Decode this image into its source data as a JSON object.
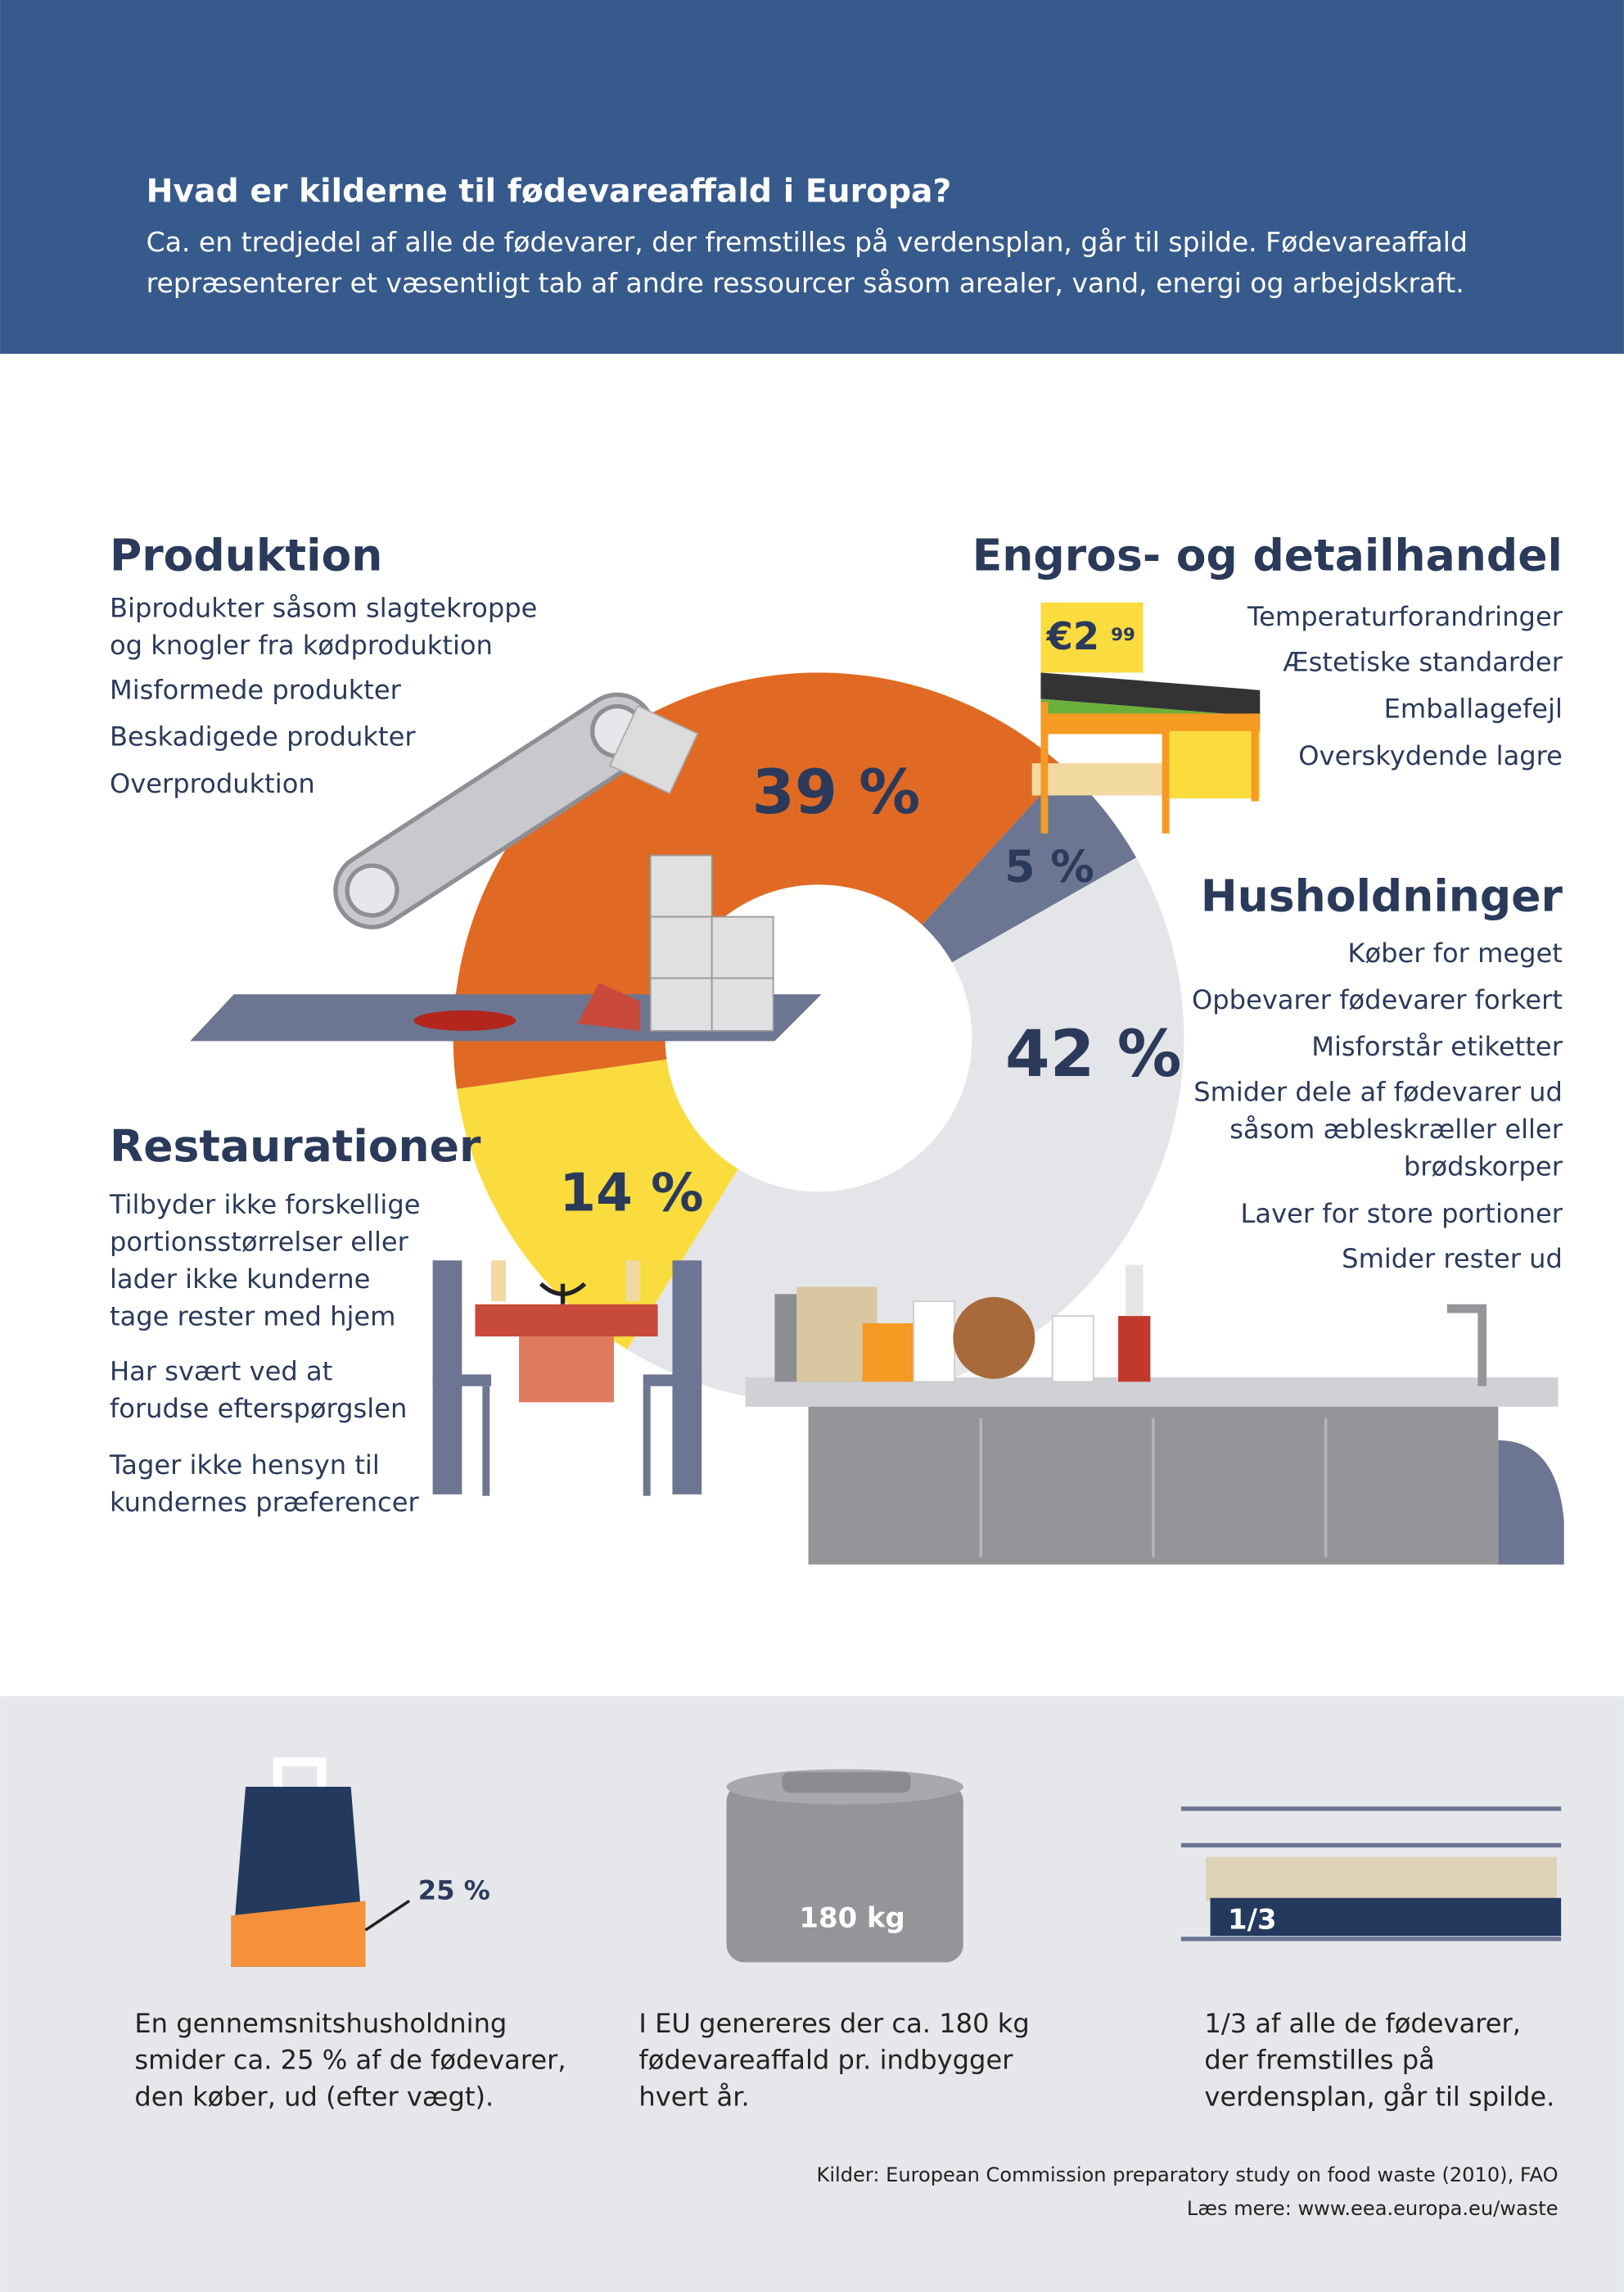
{
  "header": {
    "title": "Hvad er kilderne til fødevareaffald i Europa?",
    "subtitle": [
      "Ca. en tredjedel af alle de fødevarer, der fremstilles på verdensplan, går til spilde. Fødevareaffald",
      "repræsenterer et væsentligt tab af andre ressourcer såsom arealer, vand, energi og arbejdskraft."
    ]
  },
  "chart_data": {
    "type": "donut",
    "categories": [
      "Produktion",
      "Engros- og detailhandel",
      "Husholdninger",
      "Restaurationer"
    ],
    "values": [
      39,
      5,
      42,
      14
    ],
    "value_labels": [
      "39 %",
      "5 %",
      "42 %",
      "14 %"
    ],
    "colors": [
      "#e06a24",
      "#6c7591",
      "#e4e5e9",
      "#fbdc3e"
    ]
  },
  "sections": [
    {
      "title": "Produktion",
      "items": [
        [
          "Biprodukter såsom slagtekroppe",
          "og knogler fra kødproduktion"
        ],
        [
          "Misformede produkter"
        ],
        [
          "Beskadigede produkter"
        ],
        [
          "Overproduktion"
        ]
      ]
    },
    {
      "title": "Engros- og detailhandel",
      "items": [
        [
          "Temperaturforandringer"
        ],
        [
          "Æstetiske standarder"
        ],
        [
          "Emballagefejl"
        ],
        [
          "Overskydende lagre"
        ]
      ]
    },
    {
      "title": "Husholdninger",
      "items": [
        [
          "Køber for meget"
        ],
        [
          "Opbevarer fødevarer forkert"
        ],
        [
          "Misforstår etiketter"
        ],
        [
          "Smider dele af fødevarer ud",
          "såsom æbleskræller eller",
          "brødskorper"
        ],
        [
          "Laver for store portioner"
        ],
        [
          "Smider rester ud"
        ]
      ]
    },
    {
      "title": "Restaurationer",
      "items": [
        [
          "Tilbyder ikke forskellige",
          "portionsstørrelser eller",
          "lader ikke kunderne",
          "tage rester med hjem"
        ],
        [
          "Har svært ved at",
          "forudse efterspørgslen"
        ],
        [
          "Tager ikke hensyn til",
          "kundernes præferencer"
        ]
      ]
    }
  ],
  "price_tag": {
    "main": "€2",
    "cents": "99"
  },
  "stats": [
    {
      "label": "25 %",
      "text": [
        "En gennemsnitshusholdning",
        "smider ca. 25 % af de fødevarer,",
        "den køber, ud (efter vægt)."
      ]
    },
    {
      "label": "180 kg",
      "text": [
        "I EU genereres der ca. 180 kg",
        "fødevareaffald pr. indbygger",
        "hvert år."
      ]
    },
    {
      "label": "1/3",
      "text": [
        "1/3 af alle de fødevarer,",
        "der fremstilles på",
        "verdensplan, går til spilde."
      ]
    }
  ],
  "sources": [
    "Kilder: European Commission preparatory study on food waste (2010), FAO",
    "Læs mere: www.eea.europa.eu/waste"
  ]
}
